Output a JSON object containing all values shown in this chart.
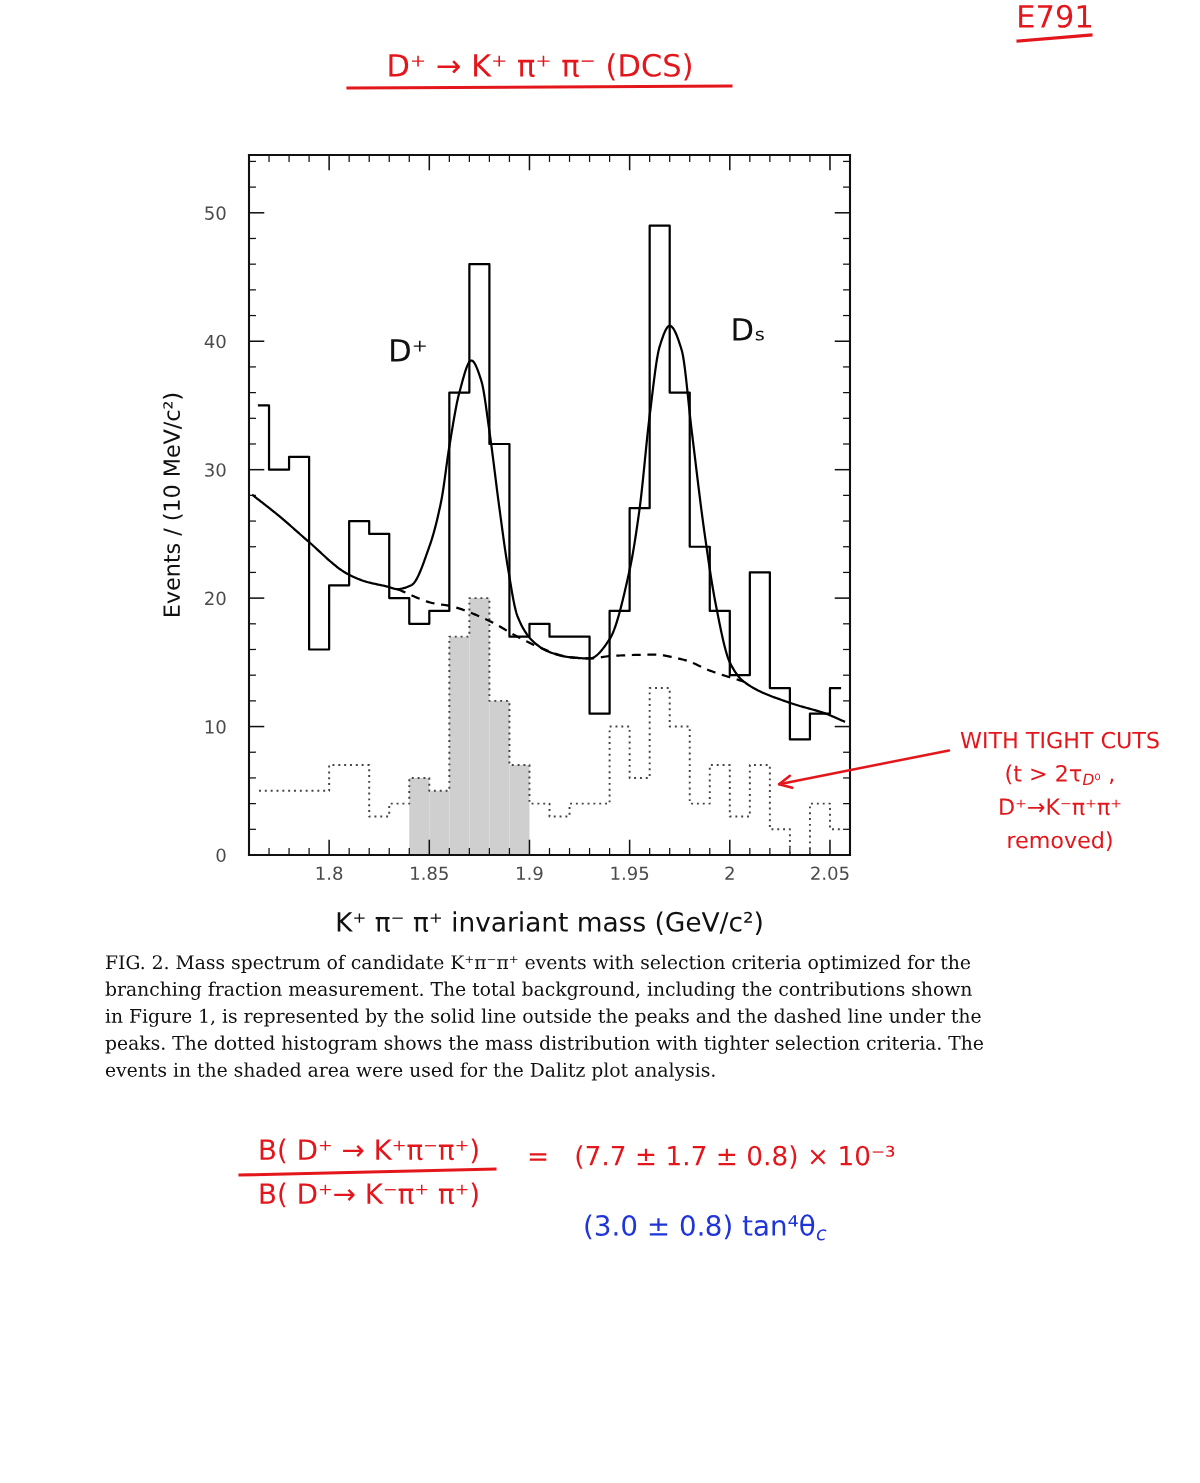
{
  "chart_data": {
    "type": "histogram",
    "title": "D⁺ → K⁺ π⁺ π⁻ (DCS)",
    "xlabel": "K⁺ π⁻ π⁺ invariant mass (GeV/c²)",
    "ylabel": "Events / (10 MeV/c²)",
    "bins": [
      1.76,
      1.77,
      1.78,
      1.79,
      1.8,
      1.81,
      1.82,
      1.83,
      1.84,
      1.85,
      1.86,
      1.87,
      1.88,
      1.89,
      1.9,
      1.91,
      1.92,
      1.93,
      1.94,
      1.95,
      1.96,
      1.97,
      1.98,
      1.99,
      2.0,
      2.01,
      2.02,
      2.03,
      2.04,
      2.05,
      2.06
    ],
    "series": [
      {
        "type": "histogram",
        "color": "#cfcfcf",
        "values": [
          null,
          null,
          null,
          null,
          null,
          null,
          null,
          null,
          6,
          5,
          17,
          20,
          12,
          7,
          null,
          null,
          null,
          null,
          null,
          null,
          null,
          null,
          null,
          null,
          null,
          null,
          null,
          null,
          null,
          null
        ]
      },
      {
        "type": "step",
        "color": "#444444",
        "line_style": "dotted",
        "x": [
          1.765,
          1.775,
          1.785,
          1.795,
          1.805,
          1.815,
          1.825,
          1.835,
          1.845,
          1.855,
          1.865,
          1.875,
          1.885,
          1.895,
          1.905,
          1.915,
          1.925,
          1.935,
          1.945,
          1.955,
          1.965,
          1.975,
          1.985,
          1.995,
          2.005,
          2.015,
          2.025,
          2.035,
          2.045,
          2.055
        ],
        "values": [
          5,
          5,
          5,
          5,
          7,
          7,
          3,
          4,
          6,
          5,
          17,
          20,
          12,
          7,
          4,
          3,
          4,
          4,
          10,
          6,
          13,
          10,
          4,
          7,
          3,
          7,
          2,
          0,
          4,
          2
        ]
      },
      {
        "type": "step",
        "color": "#000000",
        "x": [
          1.765,
          1.775,
          1.785,
          1.795,
          1.805,
          1.815,
          1.825,
          1.835,
          1.845,
          1.855,
          1.865,
          1.875,
          1.885,
          1.895,
          1.905,
          1.915,
          1.925,
          1.935,
          1.945,
          1.955,
          1.965,
          1.975,
          1.985,
          1.995,
          2.005,
          2.015,
          2.025,
          2.035,
          2.045,
          2.055
        ],
        "values": [
          35,
          30,
          31,
          16,
          21,
          26,
          25,
          20,
          18,
          19,
          36,
          46,
          32,
          17,
          18,
          17,
          17,
          11,
          19,
          27,
          49,
          36,
          24,
          19,
          14,
          22,
          13,
          9,
          11,
          13
        ]
      },
      {
        "type": "line",
        "color": "#000000",
        "x": [
          1.762,
          1.775,
          1.789,
          1.809,
          1.818,
          1.829,
          1.834,
          1.841,
          1.85,
          1.856,
          1.86,
          1.865,
          1.871,
          1.876,
          1.88,
          1.885,
          1.889,
          1.894,
          1.902,
          1.91,
          1.92,
          1.93,
          1.94,
          1.95,
          1.955,
          1.96,
          1.965,
          1.97,
          1.976,
          1.981,
          1.987,
          1.993,
          2.0,
          2.007,
          2.029,
          2.048,
          2.057
        ],
        "values": [
          28.0,
          26.4,
          24.5,
          21.9,
          21.3,
          20.9,
          20.7,
          21.0,
          24.0,
          27.6,
          31.8,
          36.0,
          38.5,
          36.9,
          33.0,
          27.0,
          22.6,
          18.6,
          16.6,
          15.8,
          15.4,
          15.3,
          16.8,
          22.2,
          27.0,
          34.2,
          39.6,
          41.2,
          39.3,
          33.0,
          25.5,
          19.5,
          15.0,
          13.5,
          11.9,
          11.0,
          10.4
        ]
      },
      {
        "type": "line",
        "color": "#000000",
        "line_style": "dashed",
        "x": [
          1.834,
          1.852,
          1.86,
          1.879,
          1.894,
          1.906,
          1.92,
          1.93,
          1.941,
          1.962,
          1.977,
          1.991,
          2.007
        ],
        "values": [
          20.7,
          19.6,
          19.4,
          18.3,
          17.0,
          16.1,
          15.4,
          15.3,
          15.5,
          15.6,
          15.2,
          14.3,
          13.5
        ]
      }
    ],
    "xlim": [
      1.76,
      2.06
    ],
    "xticks": [
      1.8,
      1.85,
      1.9,
      1.95,
      2,
      2.05
    ],
    "ylim": [
      0,
      54.5
    ],
    "yticks": [
      0,
      10,
      20,
      30,
      40,
      50
    ],
    "annotations": [
      "E791",
      "WITH TIGHT CUTS\n(t > 2τ$_{D⁰}$ ,\nD⁺→K⁻π⁺π⁺\nremoved)",
      "D⁺",
      "Dₛ",
      "FIG. 2. Mass spectrum of candidate K⁺π⁻π⁺ events with selection criteria optimized for the branching fraction measurement. The total background, including the contributions shown in Figure 1, is represented by the solid line outside the peaks and the dashed line under the peaks. The dotted histogram shows the mass distribution with tighter selection criteria. The events in the shaded area were used for the Dalitz plot analysis.",
      "B( D⁺ → K⁺π⁻π⁺)",
      "B( D⁺→ K⁻π⁺ π⁺)",
      "=   (7.7 ± 1.7 ± 0.8) × 10⁻³",
      "(3.0 ± 0.8) tan⁴θ$_{c}$"
    ]
  }
}
